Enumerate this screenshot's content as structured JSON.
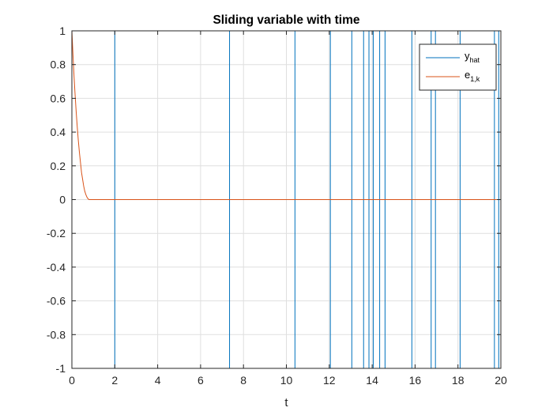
{
  "chart_data": {
    "type": "line",
    "title": "Sliding variable with time",
    "xlabel": "t",
    "ylabel": "",
    "xlim": [
      0,
      20
    ],
    "ylim": [
      -1,
      1
    ],
    "xticks": [
      0,
      2,
      4,
      6,
      8,
      10,
      12,
      14,
      16,
      18,
      20
    ],
    "yticks": [
      -1,
      -0.8,
      -0.6,
      -0.4,
      -0.2,
      0,
      0.2,
      0.4,
      0.6,
      0.8,
      1
    ],
    "grid": true,
    "legend_position": "top-right",
    "series": [
      {
        "name": "y",
        "name_sub": "hat",
        "color": "#0072BD",
        "kind": "step",
        "switch_times": [
          2.0,
          7.35,
          10.4,
          12.05,
          13.05,
          13.6,
          13.85,
          14.05,
          14.35,
          14.6,
          15.85,
          16.75,
          16.95,
          18.1,
          19.7,
          19.9
        ],
        "start_value": 1,
        "end": 20
      },
      {
        "name": "e",
        "name_sub": "1,k",
        "color": "#D95319",
        "kind": "line",
        "x": [
          0,
          0.05,
          0.1,
          0.15,
          0.2,
          0.25,
          0.3,
          0.35,
          0.4,
          0.45,
          0.5,
          0.55,
          0.6,
          0.65,
          0.7,
          0.75,
          0.8,
          2,
          4,
          6,
          8,
          10,
          12,
          14,
          16,
          18,
          20
        ],
        "y": [
          1.0,
          0.86,
          0.73,
          0.62,
          0.52,
          0.43,
          0.35,
          0.28,
          0.22,
          0.16,
          0.12,
          0.08,
          0.05,
          0.03,
          0.015,
          0.005,
          0.0,
          0,
          0,
          0,
          0,
          0,
          0,
          0,
          0,
          0,
          0
        ]
      }
    ]
  }
}
